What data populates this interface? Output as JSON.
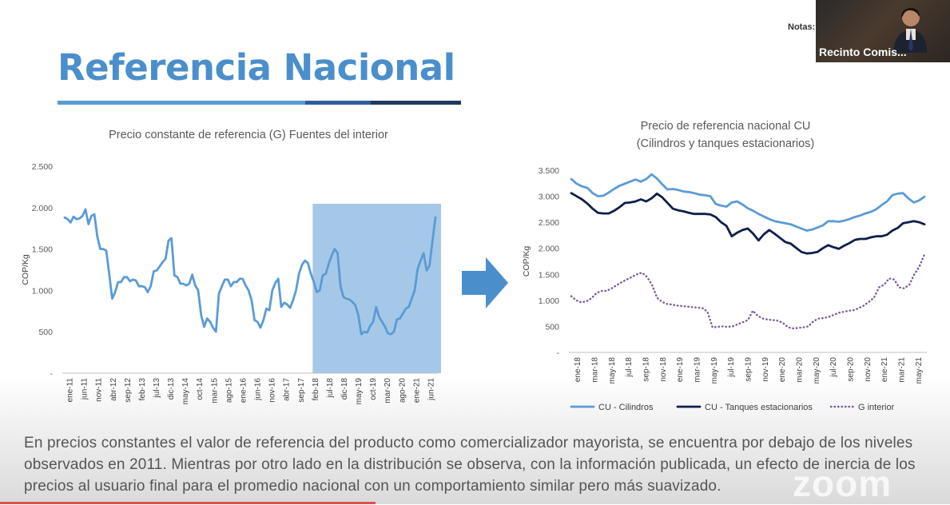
{
  "slide": {
    "title": "Referencia Nacional",
    "body": "En precios constantes el valor de referencia del producto como comercializador mayorista, se encuentra por debajo de los niveles observados en 2011. Mientras por otro lado en la distribución se observa, con la información publicada, un efecto de inercia de los precios al usuario final para el promedio nacional con un comportamiento similar pero más suavizado."
  },
  "meeting": {
    "notes_label": "Notas:",
    "participant_name": "Recinto Comis...",
    "watermark": "zoom"
  },
  "colors": {
    "title": "#4a8fcb",
    "cilindros": "#5b9bd5",
    "tanques": "#0d1f4a",
    "g_interior": "#7b5b9b",
    "highlight": "#5b9bd5",
    "arrow": "#4a8fcb"
  },
  "chart_data": [
    {
      "type": "line",
      "title": "Precio constante de referencia (G) Fuentes del interior",
      "ylabel": "COP/Kg",
      "ylim": [
        0,
        2500
      ],
      "yticks": [
        0,
        500,
        1000,
        1500,
        2000,
        2500
      ],
      "ytick_labels": [
        "-",
        "500",
        "1.000",
        "1.500",
        "2.000",
        "2.500"
      ],
      "x_labels": [
        "ene-11",
        "jun-11",
        "nov-11",
        "abr-12",
        "sep-12",
        "feb-13",
        "jul-13",
        "dic-13",
        "may-14",
        "oct-14",
        "mar-15",
        "ago-15",
        "ene-16",
        "jun-16",
        "nov-16",
        "abr-17",
        "sep-17",
        "feb-18",
        "jul-18",
        "dic-18",
        "may-19",
        "oct-19",
        "mar-20",
        "ago-20",
        "ene-21",
        "jun-21"
      ],
      "highlight": {
        "from": "feb-18",
        "to": "jun-21"
      },
      "series": [
        {
          "values": [
            1880,
            1860,
            1820,
            1890,
            1860,
            1870,
            1900,
            1980,
            1800,
            1900,
            1920,
            1650,
            1500,
            1500,
            1480,
            1200,
            900,
            980,
            1100,
            1100,
            1160,
            1160,
            1110,
            1130,
            1120,
            1050,
            1050,
            1040,
            980,
            1050,
            1230,
            1240,
            1290,
            1340,
            1380,
            1600,
            1630,
            1180,
            1160,
            1080,
            1080,
            1060,
            1080,
            1190,
            1060,
            1000,
            700,
            560,
            660,
            620,
            550,
            500,
            960,
            1050,
            1130,
            1130,
            1050,
            1100,
            1100,
            1140,
            1140,
            1060,
            1000,
            880,
            640,
            620,
            550,
            640,
            780,
            760,
            1000,
            1090,
            1140,
            800,
            850,
            830,
            790,
            880,
            1000,
            1200,
            1310,
            1360,
            1330,
            1200,
            1100,
            980,
            1000,
            1180,
            1200,
            1320,
            1420,
            1500,
            1450,
            1050,
            920,
            900,
            890,
            860,
            820,
            700,
            470,
            500,
            490,
            570,
            620,
            800,
            680,
            620,
            560,
            480,
            470,
            500,
            650,
            660,
            720,
            780,
            800,
            900,
            1000,
            1260,
            1360,
            1450,
            1240,
            1300,
            1600,
            1880
          ]
        }
      ]
    },
    {
      "type": "line",
      "title": "Precio de referencia nacional CU",
      "subtitle": "(Cilindros y tanques estacionarios)",
      "ylabel": "COP/Kg",
      "ylim": [
        0,
        3500
      ],
      "yticks": [
        0,
        500,
        1000,
        1500,
        2000,
        2500,
        3000,
        3500
      ],
      "ytick_labels": [
        "-",
        "500",
        "1.000",
        "1.500",
        "2.000",
        "2.500",
        "3.000",
        "3.500"
      ],
      "x_labels": [
        "ene-18",
        "mar-18",
        "may-18",
        "jul-18",
        "sep-18",
        "nov-18",
        "ene-19",
        "mar-19",
        "may-19",
        "jul-19",
        "sep-19",
        "nov-19",
        "ene-20",
        "mar-20",
        "may-20",
        "jul-20",
        "sep-20",
        "nov-20",
        "ene-21",
        "mar-21",
        "may-21"
      ],
      "legend_position": "bottom",
      "series": [
        {
          "name": "CU - Cilindros",
          "style": "solid",
          "values": [
            3330,
            3240,
            3190,
            3160,
            3060,
            3000,
            3010,
            3070,
            3140,
            3200,
            3240,
            3280,
            3320,
            3280,
            3330,
            3420,
            3340,
            3230,
            3130,
            3140,
            3120,
            3090,
            3080,
            3060,
            3030,
            3020,
            3000,
            2850,
            2820,
            2800,
            2880,
            2900,
            2840,
            2770,
            2720,
            2660,
            2610,
            2560,
            2520,
            2500,
            2480,
            2460,
            2420,
            2380,
            2340,
            2360,
            2400,
            2440,
            2520,
            2520,
            2510,
            2530,
            2560,
            2600,
            2630,
            2670,
            2700,
            2750,
            2830,
            2900,
            3020,
            3050,
            3060,
            2960,
            2880,
            2920,
            2990
          ]
        },
        {
          "name": "CU - Tanques estacionarios",
          "style": "solid",
          "values": [
            3060,
            3000,
            2940,
            2860,
            2760,
            2680,
            2670,
            2670,
            2720,
            2790,
            2870,
            2880,
            2900,
            2940,
            2900,
            2960,
            3050,
            2980,
            2870,
            2760,
            2730,
            2710,
            2680,
            2660,
            2660,
            2660,
            2650,
            2600,
            2500,
            2430,
            2230,
            2300,
            2350,
            2380,
            2280,
            2150,
            2270,
            2350,
            2280,
            2200,
            2120,
            2090,
            2010,
            1930,
            1900,
            1910,
            1930,
            2000,
            2060,
            2020,
            1990,
            2050,
            2100,
            2160,
            2180,
            2180,
            2210,
            2230,
            2230,
            2260,
            2340,
            2390,
            2480,
            2500,
            2520,
            2500,
            2460
          ]
        },
        {
          "name": "G interior",
          "style": "dotted",
          "values": [
            1080,
            1000,
            960,
            980,
            1040,
            1140,
            1180,
            1180,
            1230,
            1290,
            1350,
            1400,
            1450,
            1500,
            1530,
            1450,
            1300,
            1050,
            970,
            930,
            920,
            900,
            890,
            880,
            870,
            860,
            850,
            780,
            480,
            490,
            500,
            490,
            500,
            540,
            580,
            620,
            800,
            700,
            650,
            630,
            620,
            610,
            560,
            480,
            460,
            470,
            480,
            500,
            600,
            650,
            660,
            680,
            720,
            760,
            780,
            800,
            810,
            850,
            900,
            970,
            1050,
            1250,
            1300,
            1420,
            1400,
            1250,
            1230,
            1300,
            1500,
            1650,
            1880
          ]
        }
      ]
    }
  ]
}
